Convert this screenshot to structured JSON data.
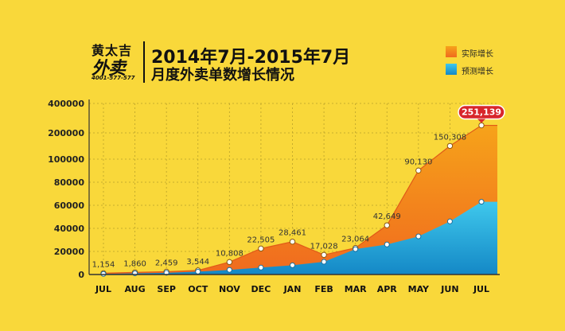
{
  "logo": {
    "name_top": "黄太吉",
    "name_main": "外卖",
    "phone": "4001-577-577"
  },
  "title": {
    "line1": "2014年7月-2015年7月",
    "line2": "月度外卖单数增长情况"
  },
  "legend": {
    "actual_label": "实际增长",
    "forecast_label": "预测增长"
  },
  "colors": {
    "background": "#F9D83A",
    "actual_top": "#F6A31A",
    "actual_bottom": "#F06A1E",
    "forecast_top": "#3FC8EC",
    "forecast_bottom": "#1488C6",
    "callout": "#D8262B"
  },
  "chart_data": {
    "type": "area",
    "categories": [
      "JUL",
      "AUG",
      "SEP",
      "OCT",
      "NOV",
      "DEC",
      "JAN",
      "FEB",
      "MAR",
      "APR",
      "MAY",
      "JUN",
      "JUL"
    ],
    "y_tick_labels": [
      "0",
      "20000",
      "40000",
      "60000",
      "80000",
      "100000",
      "200000",
      "400000"
    ],
    "y_scale": "non-linear (printed ticks 0–400000)",
    "grid": true,
    "series": [
      {
        "name": "实际增长",
        "values": [
          1154,
          1860,
          2459,
          3544,
          10808,
          22505,
          28461,
          17028,
          23064,
          42649,
          90130,
          150308,
          251139
        ],
        "data_labels": [
          "1,154",
          "1,860",
          "2,459",
          "3,544",
          "10,808",
          "22,505",
          "28,461",
          "17,028",
          "23,064",
          "42,649",
          "90,130",
          "150,308",
          "251,139"
        ],
        "highlight_label": "251,139"
      },
      {
        "name": "预测增长",
        "values": [
          500,
          1000,
          1500,
          2500,
          4000,
          6000,
          8000,
          11000,
          22000,
          26000,
          33000,
          46000,
          63000
        ]
      }
    ]
  }
}
